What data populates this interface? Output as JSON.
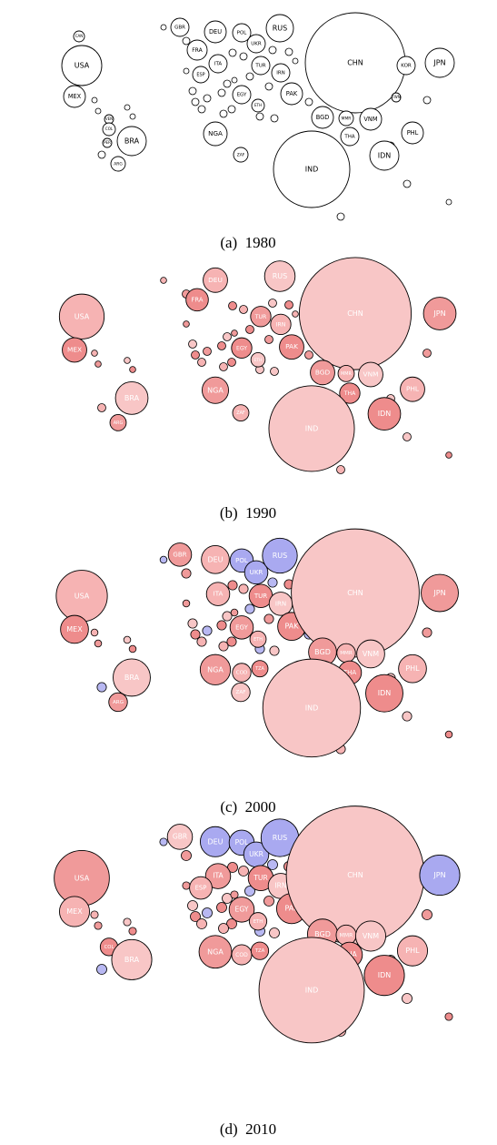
{
  "panels": [
    {
      "caption": "(a)  1980",
      "bubbles": [
        "CAN",
        "USA",
        "MEX",
        "VEN",
        "COL",
        "PER",
        "BRA",
        "ARG",
        "GBR",
        "DEU",
        "POL",
        "RUS",
        "FRA",
        "UKR",
        "ITA",
        "ESP",
        "TUR",
        "IRN",
        "EGY",
        "ETH",
        "NGA",
        "ZAF",
        "PAK",
        "CHN",
        "KOR",
        "JPN",
        "TWN",
        "BGD",
        "MMR",
        "VNM",
        "THA",
        "PHL",
        "IDN",
        "IND"
      ]
    },
    {
      "caption": "(b)  1990",
      "bubbles": [
        "USA",
        "MEX",
        "BRA",
        "ARG",
        "DEU",
        "FRA",
        "RUS",
        "TUR",
        "IRN",
        "EGY",
        "ETH",
        "NGA",
        "ZAF",
        "PAK",
        "CHN",
        "BGD",
        "MMR",
        "THA",
        "VNM",
        "JPN",
        "PHL",
        "IDN",
        "IND"
      ]
    },
    {
      "caption": "(c)  2000",
      "bubbles": [
        "GBR",
        "DEU",
        "POL",
        "UKR",
        "RUS",
        "USA",
        "MEX",
        "BRA",
        "ARG",
        "ITA",
        "TUR",
        "IRN",
        "EGY",
        "ETH",
        "PAK",
        "CHN",
        "BGD",
        "MMR",
        "THA",
        "VNM",
        "JPN",
        "PHL",
        "IDN",
        "IND",
        "NGA",
        "COD",
        "TZA",
        "ZAF"
      ]
    },
    {
      "caption": "(d)  2010",
      "bubbles": [
        "GBR",
        "DEU",
        "POL",
        "UKR",
        "RUS",
        "USA",
        "MEX",
        "COL",
        "BRA",
        "ITA",
        "ESP",
        "TUR",
        "IRN",
        "EGY",
        "ETH",
        "PAK",
        "CHN",
        "BGD",
        "MMR",
        "THA",
        "VNM",
        "JPN",
        "PHL",
        "IDN",
        "IND",
        "NGA",
        "COD",
        "TZA"
      ]
    }
  ]
}
